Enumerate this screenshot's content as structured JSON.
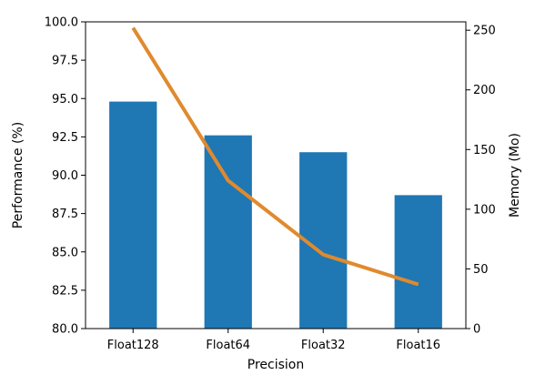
{
  "chart_data": {
    "type": "bar",
    "categories": [
      "Float128",
      "Float64",
      "Float32",
      "Float16"
    ],
    "series": [
      {
        "type": "bar",
        "axis": "left",
        "color": "#1f77b4",
        "values": [
          94.8,
          92.6,
          91.5,
          88.7
        ]
      },
      {
        "type": "line",
        "axis": "right",
        "color": "#e08a2e",
        "values": [
          252,
          124,
          62,
          37
        ]
      }
    ],
    "xlabel": "Precision",
    "ylabel": "Performance (%)",
    "y2label": "Memory (Mo)",
    "ylim": [
      80.0,
      100.0
    ],
    "y2lim": [
      0,
      257
    ],
    "yticks": [
      "80.0",
      "82.5",
      "85.0",
      "87.5",
      "90.0",
      "92.5",
      "95.0",
      "97.5",
      "100.0"
    ],
    "y2ticks": [
      "0",
      "50",
      "100",
      "150",
      "200",
      "250"
    ],
    "grid": false,
    "legend": "none"
  }
}
